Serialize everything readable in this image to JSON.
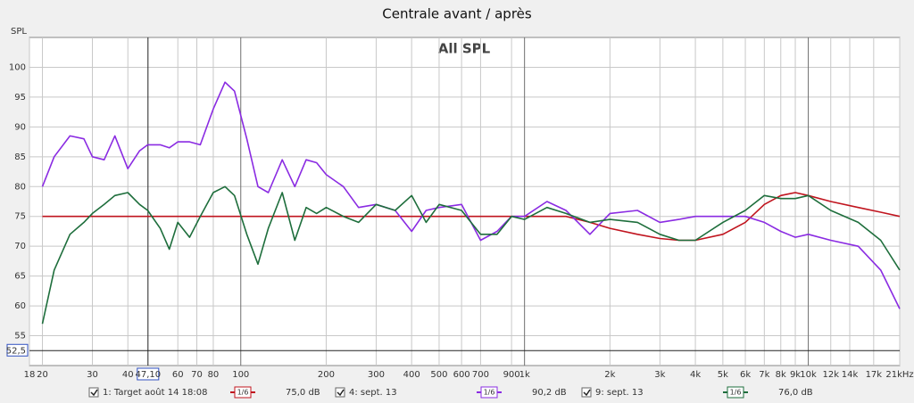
{
  "chart_data": {
    "type": "line",
    "title": "Centrale avant / après",
    "subtitle": "All SPL",
    "ylabel": "SPL",
    "log_x": true,
    "grid": true,
    "xlim": [
      18,
      21000
    ],
    "ylim": [
      50,
      105
    ],
    "yticks": [
      55,
      60,
      65,
      70,
      75,
      80,
      85,
      90,
      95,
      100
    ],
    "xticks": [
      18,
      20,
      30,
      40,
      60,
      70,
      80,
      100,
      200,
      300,
      400,
      500,
      600,
      700,
      900,
      {
        "value": 1000,
        "label": "1k"
      },
      {
        "value": 2000,
        "label": "2k"
      },
      {
        "value": 3000,
        "label": "3k"
      },
      {
        "value": 4000,
        "label": "4k"
      },
      {
        "value": 5000,
        "label": "5k"
      },
      {
        "value": 6000,
        "label": "6k"
      },
      {
        "value": 7000,
        "label": "7k"
      },
      {
        "value": 8000,
        "label": "8k"
      },
      {
        "value": 9000,
        "label": "9k"
      },
      {
        "value": 10000,
        "label": "10k"
      },
      {
        "value": 12000,
        "label": "12k"
      },
      {
        "value": 14000,
        "label": "14k"
      },
      {
        "value": 17000,
        "label": "17k"
      },
      {
        "value": 21000,
        "label": "21kHz"
      }
    ],
    "cursor": {
      "x": {
        "value": 47.1,
        "label": "47,10"
      },
      "y": {
        "value": 52.5,
        "label": "52,5"
      }
    },
    "x": [
      20,
      22,
      25,
      28,
      30,
      33,
      36,
      40,
      44,
      47,
      52,
      56,
      60,
      66,
      72,
      80,
      88,
      95,
      105,
      115,
      125,
      140,
      155,
      170,
      185,
      200,
      230,
      260,
      300,
      350,
      400,
      450,
      500,
      600,
      700,
      800,
      900,
      1000,
      1200,
      1400,
      1700,
      2000,
      2500,
      3000,
      3500,
      4000,
      5000,
      6000,
      7000,
      8000,
      9000,
      10000,
      12000,
      15000,
      18000,
      21000
    ],
    "series": [
      {
        "name": "1: Target août 14 18:08",
        "color": "#c0141e",
        "smoothing": "1/6",
        "level": "75,0 dB",
        "checked": true,
        "values": [
          75,
          75,
          75,
          75,
          75,
          75,
          75,
          75,
          75,
          75,
          75,
          75,
          75,
          75,
          75,
          75,
          75,
          75,
          75,
          75,
          75,
          75,
          75,
          75,
          75,
          75,
          75,
          75,
          75,
          75,
          75,
          75,
          75,
          75,
          75,
          75,
          75,
          75,
          75,
          75,
          74,
          73,
          72,
          71.3,
          71,
          71,
          72,
          74,
          77,
          78.5,
          79,
          78.5,
          77.5,
          76.5,
          75.7,
          75
        ]
      },
      {
        "name": "4: sept. 13",
        "color": "#8a2be2",
        "smoothing": "1/6",
        "level": "90,2 dB",
        "checked": true,
        "values": [
          80,
          85,
          88.5,
          88,
          85,
          84.5,
          88.5,
          83,
          86,
          87,
          87,
          86.5,
          87.5,
          87.5,
          87,
          93,
          97.5,
          96,
          88,
          80,
          79,
          84.5,
          80,
          84.5,
          84,
          82,
          80,
          76.5,
          77,
          76,
          72.5,
          76,
          76.5,
          77,
          71,
          72.5,
          75,
          75,
          77.5,
          76,
          72,
          75.5,
          76,
          74,
          74.5,
          75,
          75,
          75,
          74,
          72.5,
          71.5,
          72,
          71,
          70,
          66,
          59.5
        ]
      },
      {
        "name": "9: sept. 13",
        "color": "#1e6e3c",
        "smoothing": "1/6",
        "level": "76,0 dB",
        "checked": true,
        "values": [
          57,
          66,
          72,
          74,
          75.5,
          77,
          78.5,
          79,
          77,
          76,
          73,
          69.5,
          74,
          71.5,
          75,
          79,
          80,
          78.5,
          72,
          67,
          73,
          79,
          71,
          76.5,
          75.5,
          76.5,
          75,
          74,
          77,
          76,
          78.5,
          74,
          77,
          76,
          72,
          72,
          75,
          74.5,
          76.5,
          75.5,
          74,
          74.5,
          74,
          72,
          71,
          71,
          74,
          76,
          78.5,
          78,
          78,
          78.5,
          76,
          74,
          71,
          66
        ]
      }
    ]
  }
}
